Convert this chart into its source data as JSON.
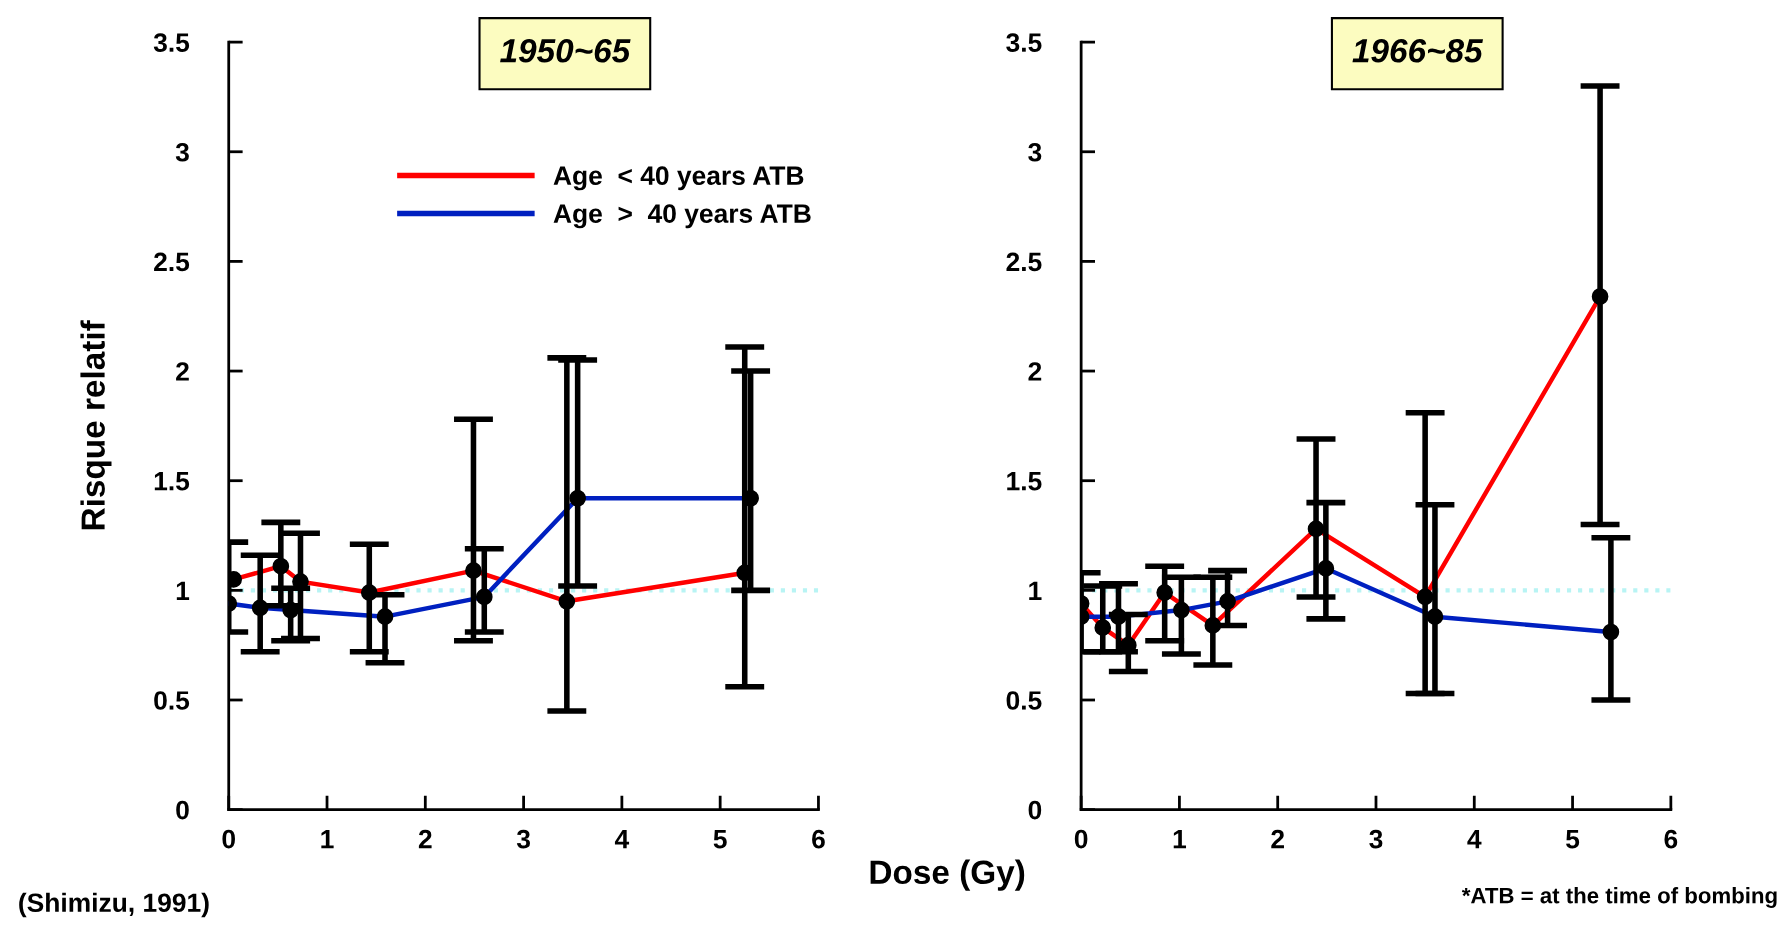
{
  "chart_data": [
    {
      "type": "line",
      "title": "1950~65",
      "ylabel": "Risque relatif",
      "xlabel": "Dose (Gy)",
      "xlim": [
        0,
        6
      ],
      "xticks": [
        0,
        1,
        2,
        3,
        4,
        5,
        6
      ],
      "ylim": [
        0,
        3.5
      ],
      "yticks": [
        0,
        0.5,
        1,
        1.5,
        2,
        2.5,
        3,
        3.5
      ],
      "marker": "circle",
      "legend": "top right",
      "grid": false,
      "ref_lines": [
        {
          "axis": "y",
          "value": 1,
          "color": "#b8f4f4",
          "line_style": "dotted"
        }
      ],
      "annotations": [
        "(Shimizu, 1991)"
      ],
      "series": [
        {
          "name": "Age  < 40 years ATB",
          "color": "#ff0000",
          "x": [
            0.05,
            0.53,
            0.73,
            1.43,
            2.49,
            3.44,
            5.25
          ],
          "values": [
            1.05,
            1.11,
            1.04,
            0.99,
            1.09,
            0.95,
            1.08
          ],
          "errors": [
            null,
            [
              0.93,
              1.31
            ],
            [
              0.78,
              1.26
            ],
            [
              0.72,
              1.21
            ],
            [
              0.77,
              1.78
            ],
            [
              0.45,
              2.06
            ],
            [
              0.56,
              2.11
            ]
          ]
        },
        {
          "name": "Age  >  40 years ATB",
          "color": "#0020c0",
          "x": [
            0.0,
            0.32,
            0.63,
            1.59,
            2.6,
            3.55,
            5.31
          ],
          "values": [
            0.94,
            0.92,
            0.91,
            0.88,
            0.97,
            1.42,
            1.42
          ],
          "errors": [
            [
              0.81,
              1.22
            ],
            [
              0.72,
              1.16
            ],
            [
              0.77,
              1.01
            ],
            [
              0.67,
              0.98
            ],
            [
              0.81,
              1.19
            ],
            [
              1.02,
              2.05
            ],
            [
              1.0,
              2.0
            ]
          ]
        }
      ]
    },
    {
      "type": "line",
      "title": "1966~85",
      "xlim": [
        0,
        6
      ],
      "xticks": [
        0,
        1,
        2,
        3,
        4,
        5,
        6
      ],
      "ylim": [
        0,
        3.5
      ],
      "yticks": [
        0,
        0.5,
        1,
        1.5,
        2,
        2.5,
        3,
        3.5
      ],
      "marker": "circle",
      "grid": false,
      "ref_lines": [
        {
          "axis": "y",
          "value": 1,
          "color": "#b8f4f4",
          "line_style": "dotted"
        }
      ],
      "annotations": [
        "*ATB = at the time of bombing"
      ],
      "series": [
        {
          "color": "#ff0000",
          "x": [
            0.0,
            0.22,
            0.48,
            0.85,
            1.34,
            2.39,
            3.5,
            5.28
          ],
          "values": [
            0.94,
            0.83,
            0.75,
            0.99,
            0.84,
            1.28,
            0.97,
            2.34
          ],
          "errors": [
            null,
            [
              0.72,
              1.02
            ],
            [
              0.63,
              0.89
            ],
            [
              0.77,
              1.11
            ],
            [
              0.66,
              1.06
            ],
            [
              0.97,
              1.69
            ],
            [
              0.53,
              1.81
            ],
            [
              1.3,
              3.3
            ]
          ]
        },
        {
          "color": "#0020c0",
          "x": [
            0.0,
            0.38,
            1.02,
            1.49,
            2.49,
            3.6,
            5.39
          ],
          "values": [
            0.88,
            0.88,
            0.91,
            0.95,
            1.1,
            0.88,
            0.81
          ],
          "errors": [
            [
              0.72,
              1.08
            ],
            [
              0.72,
              1.03
            ],
            [
              0.71,
              1.06
            ],
            [
              0.84,
              1.09
            ],
            [
              0.87,
              1.4
            ],
            [
              0.53,
              1.39
            ],
            [
              0.5,
              1.24
            ]
          ]
        }
      ]
    }
  ]
}
